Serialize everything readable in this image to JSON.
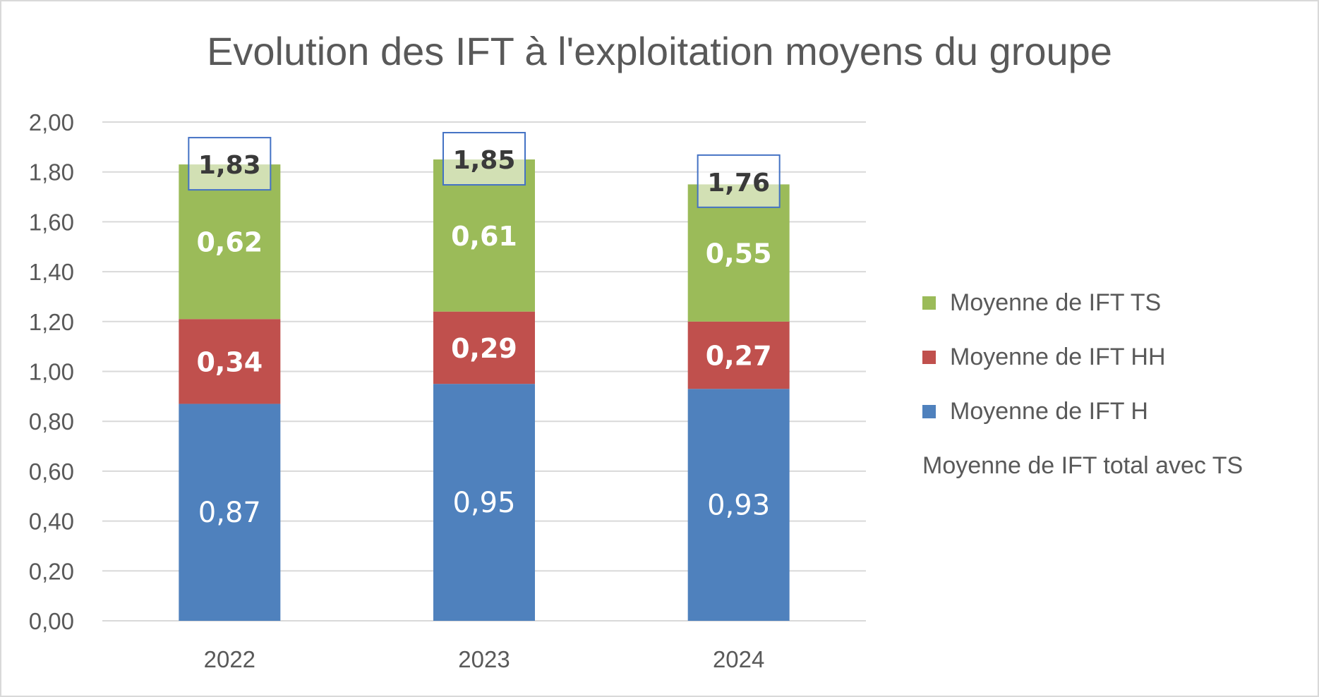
{
  "chart_data": {
    "type": "bar",
    "stacked": true,
    "title": "Evolution des IFT à l'exploitation moyens du groupe",
    "categories": [
      "2022",
      "2023",
      "2024"
    ],
    "series": [
      {
        "name": "Moyenne de IFT H",
        "values": [
          0.87,
          0.95,
          0.93
        ],
        "labels": [
          "0,87",
          "0,95",
          "0,93"
        ],
        "color": "#4f81bd"
      },
      {
        "name": "Moyenne de IFT HH",
        "values": [
          0.34,
          0.29,
          0.27
        ],
        "labels": [
          "0,34",
          "0,29",
          "0,27"
        ],
        "color": "#c0504d"
      },
      {
        "name": "Moyenne de IFT TS",
        "values": [
          0.62,
          0.61,
          0.55
        ],
        "labels": [
          "0,62",
          "0,61",
          "0,55"
        ],
        "color": "#9bbb59"
      }
    ],
    "totals": {
      "name": "Moyenne de IFT total avec TS",
      "values": [
        1.83,
        1.85,
        1.76
      ],
      "labels": [
        "1,83",
        "1,85",
        "1,76"
      ],
      "box_color": "#4472c4"
    },
    "ylim": [
      0,
      2
    ],
    "yticks": [
      0,
      0.2,
      0.4,
      0.6,
      0.8,
      1.0,
      1.2,
      1.4,
      1.6,
      1.8,
      2.0
    ],
    "ytick_labels": [
      "0,00",
      "0,20",
      "0,40",
      "0,60",
      "0,80",
      "1,00",
      "1,20",
      "1,40",
      "1,60",
      "1,80",
      "2,00"
    ],
    "grid": true,
    "legend_position": "right",
    "legend_order": [
      "Moyenne de IFT TS",
      "Moyenne de IFT HH",
      "Moyenne de IFT H",
      "Moyenne de IFT total avec TS"
    ],
    "xlabel": "",
    "ylabel": ""
  }
}
